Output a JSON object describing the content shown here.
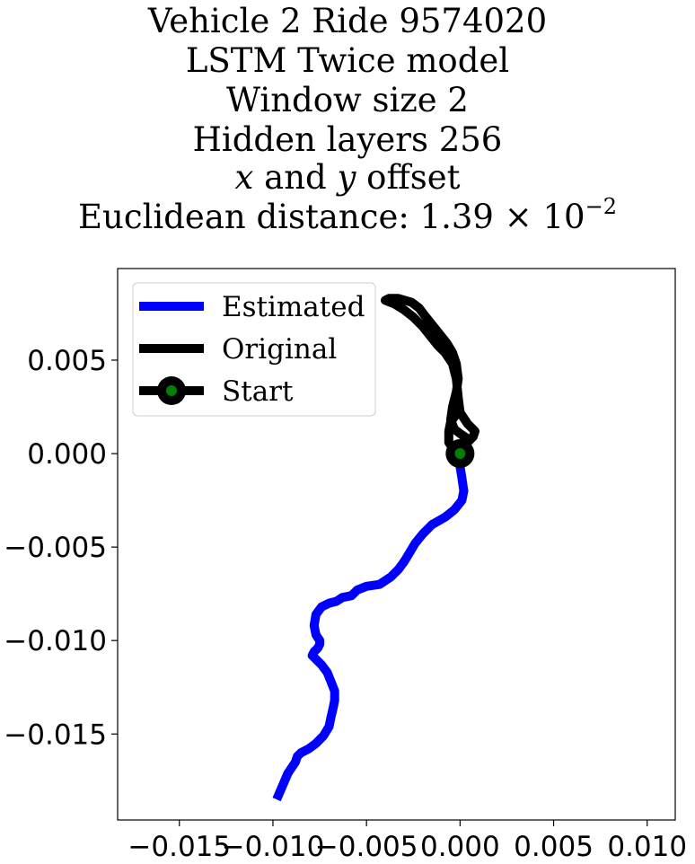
{
  "title": {
    "line1": "Vehicle 2 Ride 9574020",
    "line2": "LSTM Twice model",
    "line3": "Window size 2",
    "line4": "Hidden layers 256",
    "line5_var_x": "x",
    "line5_mid": " and ",
    "line5_var_y": "y",
    "line5_end": " offset",
    "line6_prefix": "Euclidean distance: 1.39 × 10",
    "line6_exponent": "−2"
  },
  "chart_data": {
    "type": "line",
    "xlim": [
      -0.0183,
      0.0115
    ],
    "ylim": [
      -0.0196,
      0.0099
    ],
    "x_ticks": [
      {
        "value": -0.015,
        "label": "−0.015"
      },
      {
        "value": -0.01,
        "label": "−0.010"
      },
      {
        "value": -0.005,
        "label": "−0.005"
      },
      {
        "value": 0.0,
        "label": "0.000"
      },
      {
        "value": 0.005,
        "label": "0.005"
      },
      {
        "value": 0.01,
        "label": "0.010"
      }
    ],
    "y_ticks": [
      {
        "value": 0.005,
        "label": "0.005"
      },
      {
        "value": 0.0,
        "label": "0.000"
      },
      {
        "value": -0.005,
        "label": "−0.005"
      },
      {
        "value": -0.01,
        "label": "−0.010"
      },
      {
        "value": -0.015,
        "label": "−0.015"
      }
    ],
    "grid": false,
    "legend": {
      "placement": "upper-left",
      "entries": [
        {
          "label": "Estimated",
          "color": "#0000ff",
          "style": "line"
        },
        {
          "label": "Original",
          "color": "#000000",
          "style": "line"
        },
        {
          "label": "Start",
          "color": "#000000",
          "marker_color": "#008000",
          "style": "line-marker"
        }
      ]
    },
    "series": [
      {
        "name": "Estimated",
        "color": "#0000ff",
        "x": [
          0.0,
          0.0,
          0.0001,
          0.0002,
          0.0001,
          -0.0003,
          -0.0008,
          -0.0015,
          -0.002,
          -0.0024,
          -0.0027,
          -0.003,
          -0.0033,
          -0.0037,
          -0.0043,
          -0.005,
          -0.0055,
          -0.0058,
          -0.0063,
          -0.0066,
          -0.007,
          -0.0074,
          -0.0077,
          -0.0078,
          -0.0077,
          -0.0075,
          -0.0075,
          -0.0076,
          -0.0078,
          -0.0079,
          -0.0077,
          -0.0074,
          -0.0071,
          -0.0069,
          -0.0067,
          -0.0067,
          -0.0068,
          -0.0069,
          -0.007,
          -0.0073,
          -0.0077,
          -0.0081,
          -0.0085,
          -0.0087,
          -0.0088,
          -0.0092,
          -0.0095,
          -0.0098
        ],
        "y": [
          0.0,
          -0.0007,
          -0.0013,
          -0.002,
          -0.0025,
          -0.003,
          -0.0034,
          -0.0038,
          -0.0043,
          -0.0048,
          -0.0053,
          -0.0058,
          -0.0062,
          -0.0066,
          -0.007,
          -0.0071,
          -0.0073,
          -0.0076,
          -0.0077,
          -0.0079,
          -0.008,
          -0.0082,
          -0.0086,
          -0.0092,
          -0.0097,
          -0.01,
          -0.0102,
          -0.0104,
          -0.0106,
          -0.0108,
          -0.011,
          -0.0113,
          -0.0117,
          -0.0122,
          -0.0127,
          -0.0132,
          -0.0137,
          -0.0141,
          -0.0146,
          -0.0151,
          -0.0155,
          -0.0158,
          -0.016,
          -0.0162,
          -0.0165,
          -0.0171,
          -0.0178,
          -0.0185
        ]
      },
      {
        "name": "Original",
        "color": "#000000",
        "x": [
          0.0,
          0.0003,
          0.0007,
          0.0008,
          0.0004,
          0.0,
          -0.0001,
          -0.0002,
          -0.0004,
          -0.0008,
          -0.0012,
          -0.0016,
          -0.002,
          -0.0025,
          -0.003,
          -0.0035,
          -0.004,
          -0.0038,
          -0.0033,
          -0.0026,
          -0.0022,
          -0.0019,
          -0.0015,
          -0.0011,
          -0.0007,
          -0.0004,
          -0.0002,
          -0.0001,
          -0.0002,
          -0.0004,
          -0.0005,
          -0.0003,
          0.0001,
          0.0004,
          0.0003,
          -0.0001,
          -0.0004,
          -0.0006,
          -0.0006,
          -0.0005,
          -0.0002,
          0.0
        ],
        "y": [
          0.0,
          0.0005,
          0.0009,
          0.0012,
          0.0016,
          0.0022,
          0.003,
          0.004,
          0.0048,
          0.0054,
          0.0058,
          0.0063,
          0.0068,
          0.0073,
          0.0077,
          0.008,
          0.0082,
          0.0083,
          0.0083,
          0.0081,
          0.0078,
          0.0074,
          0.0069,
          0.0064,
          0.0059,
          0.0054,
          0.0048,
          0.004,
          0.0033,
          0.0025,
          0.0018,
          0.0013,
          0.001,
          0.0008,
          0.0006,
          0.0004,
          0.0003,
          0.0006,
          0.0012,
          0.0017,
          0.0021,
          0.0024
        ]
      }
    ],
    "start_point": {
      "x": 0.0,
      "y": 0.0,
      "ring_color": "#000000",
      "center_color": "#008000"
    }
  }
}
